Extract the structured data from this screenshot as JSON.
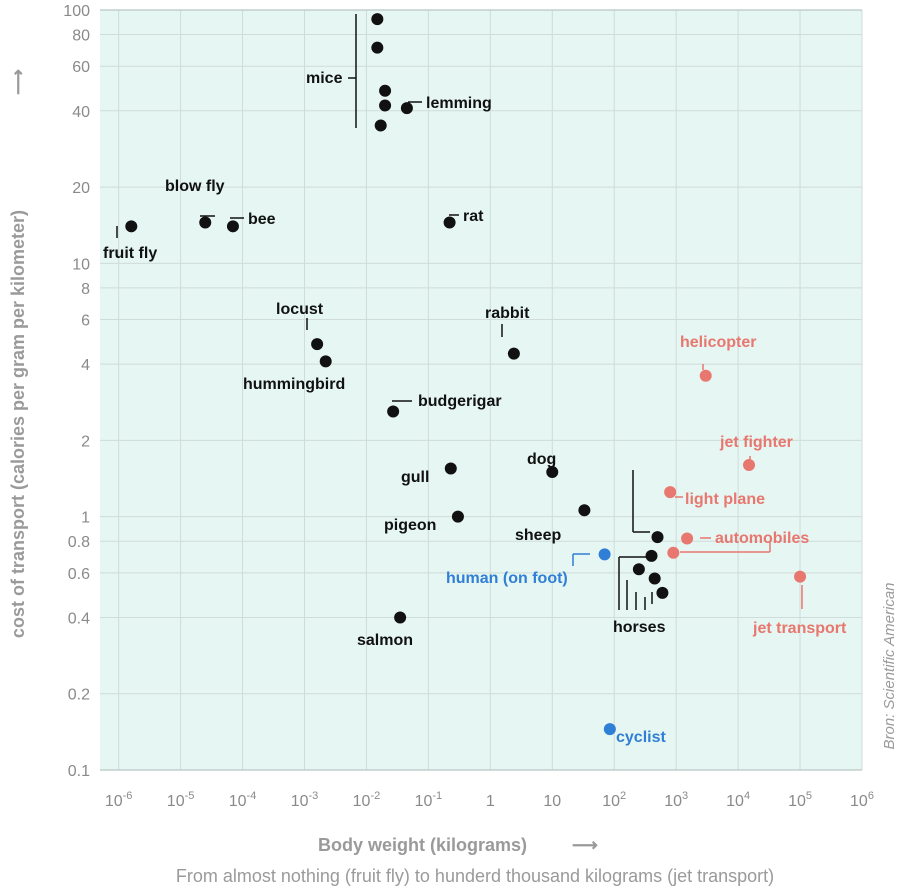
{
  "chart_data": {
    "type": "scatter",
    "xlabel": "Body weight (kilograms)",
    "xlabel_arrow": "⟶",
    "ylabel": "cost of transport (calories per gram per  kilometer)",
    "ylabel_arrow": "⟶",
    "subtitle": "From almost nothing (fruit fly) to hunderd thousand kilograms (jet transport)",
    "source": "Bron: Scientific American",
    "x_scale": "log",
    "y_scale": "log",
    "xlim": [
      5e-07,
      1000000
    ],
    "ylim": [
      0.1,
      100
    ],
    "grid": true,
    "x_ticks": [
      {
        "value": 1e-06,
        "base": "10",
        "exp": "-6"
      },
      {
        "value": 1e-05,
        "base": "10",
        "exp": "-5"
      },
      {
        "value": 0.0001,
        "base": "10",
        "exp": "-4"
      },
      {
        "value": 0.001,
        "base": "10",
        "exp": "-3"
      },
      {
        "value": 0.01,
        "base": "10",
        "exp": "-2"
      },
      {
        "value": 0.1,
        "base": "10",
        "exp": "-1"
      },
      {
        "value": 1,
        "base": "1",
        "exp": ""
      },
      {
        "value": 10,
        "base": "10",
        "exp": ""
      },
      {
        "value": 100,
        "base": "10",
        "exp": "2"
      },
      {
        "value": 1000,
        "base": "10",
        "exp": "3"
      },
      {
        "value": 10000,
        "base": "10",
        "exp": "4"
      },
      {
        "value": 100000,
        "base": "10",
        "exp": "5"
      },
      {
        "value": 1000000,
        "base": "10",
        "exp": "6"
      }
    ],
    "y_ticks": [
      {
        "value": 0.1,
        "label": "0.1"
      },
      {
        "value": 0.2,
        "label": "0.2"
      },
      {
        "value": 0.4,
        "label": "0.4"
      },
      {
        "value": 0.6,
        "label": "0.6"
      },
      {
        "value": 0.8,
        "label": "0.8"
      },
      {
        "value": 1,
        "label": "1"
      },
      {
        "value": 2,
        "label": "2"
      },
      {
        "value": 4,
        "label": "4"
      },
      {
        "value": 6,
        "label": "6"
      },
      {
        "value": 8,
        "label": "8"
      },
      {
        "value": 10,
        "label": "10"
      },
      {
        "value": 20,
        "label": "20"
      },
      {
        "value": 40,
        "label": "40"
      },
      {
        "value": 60,
        "label": "60"
      },
      {
        "value": 80,
        "label": "80"
      },
      {
        "value": 100,
        "label": "100"
      }
    ],
    "colors": {
      "animal": "#111111",
      "vehicle": "#e8776f",
      "human": "#2f7fd6",
      "plot_background": "#e6f6f2",
      "grid": "#cfdcd9"
    },
    "points": [
      {
        "group": "animal",
        "x": 1.6e-06,
        "y": 14
      },
      {
        "group": "animal",
        "x": 2.5e-05,
        "y": 14.5
      },
      {
        "group": "animal",
        "x": 7e-05,
        "y": 14
      },
      {
        "group": "animal",
        "x": 0.015,
        "y": 92
      },
      {
        "group": "animal",
        "x": 0.015,
        "y": 71
      },
      {
        "group": "animal",
        "x": 0.02,
        "y": 48
      },
      {
        "group": "animal",
        "x": 0.02,
        "y": 42
      },
      {
        "group": "animal",
        "x": 0.017,
        "y": 35
      },
      {
        "group": "animal",
        "x": 0.045,
        "y": 41
      },
      {
        "group": "animal",
        "x": 0.22,
        "y": 14.5
      },
      {
        "group": "animal",
        "x": 0.0016,
        "y": 4.8
      },
      {
        "group": "animal",
        "x": 0.0022,
        "y": 4.1
      },
      {
        "group": "animal",
        "x": 2.4,
        "y": 4.4
      },
      {
        "group": "animal",
        "x": 0.027,
        "y": 2.6
      },
      {
        "group": "animal",
        "x": 0.23,
        "y": 1.55
      },
      {
        "group": "animal",
        "x": 0.3,
        "y": 1.0
      },
      {
        "group": "animal",
        "x": 0.035,
        "y": 0.4
      },
      {
        "group": "animal",
        "x": 10,
        "y": 1.5
      },
      {
        "group": "animal",
        "x": 33,
        "y": 1.06
      },
      {
        "group": "animal",
        "x": 500,
        "y": 0.83
      },
      {
        "group": "animal",
        "x": 400,
        "y": 0.7
      },
      {
        "group": "animal",
        "x": 250,
        "y": 0.62
      },
      {
        "group": "animal",
        "x": 450,
        "y": 0.57
      },
      {
        "group": "animal",
        "x": 600,
        "y": 0.5
      },
      {
        "group": "human",
        "x": 70,
        "y": 0.71
      },
      {
        "group": "human",
        "x": 85,
        "y": 0.145
      },
      {
        "group": "vehicle",
        "x": 3000,
        "y": 3.6
      },
      {
        "group": "vehicle",
        "x": 15000,
        "y": 1.6
      },
      {
        "group": "vehicle",
        "x": 800,
        "y": 1.25
      },
      {
        "group": "vehicle",
        "x": 1500,
        "y": 0.82
      },
      {
        "group": "vehicle",
        "x": 900,
        "y": 0.72
      },
      {
        "group": "vehicle",
        "x": 100000,
        "y": 0.58
      }
    ],
    "annotations": [
      {
        "text": "fruit fly",
        "group": "animal"
      },
      {
        "text": "blow fly",
        "group": "animal"
      },
      {
        "text": "bee",
        "group": "animal"
      },
      {
        "text": "mice",
        "group": "animal"
      },
      {
        "text": "lemming",
        "group": "animal"
      },
      {
        "text": "rat",
        "group": "animal"
      },
      {
        "text": "locust",
        "group": "animal"
      },
      {
        "text": "hummingbird",
        "group": "animal"
      },
      {
        "text": "rabbit",
        "group": "animal"
      },
      {
        "text": "budgerigar",
        "group": "animal"
      },
      {
        "text": "gull",
        "group": "animal"
      },
      {
        "text": "pigeon",
        "group": "animal"
      },
      {
        "text": "salmon",
        "group": "animal"
      },
      {
        "text": "dog",
        "group": "animal"
      },
      {
        "text": "sheep",
        "group": "animal"
      },
      {
        "text": "horses",
        "group": "animal"
      },
      {
        "text": "human (on foot)",
        "group": "human"
      },
      {
        "text": "cyclist",
        "group": "human"
      },
      {
        "text": "helicopter",
        "group": "vehicle"
      },
      {
        "text": "jet fighter",
        "group": "vehicle"
      },
      {
        "text": "light plane",
        "group": "vehicle"
      },
      {
        "text": "automobiles",
        "group": "vehicle"
      },
      {
        "text": "jet transport",
        "group": "vehicle"
      }
    ]
  }
}
